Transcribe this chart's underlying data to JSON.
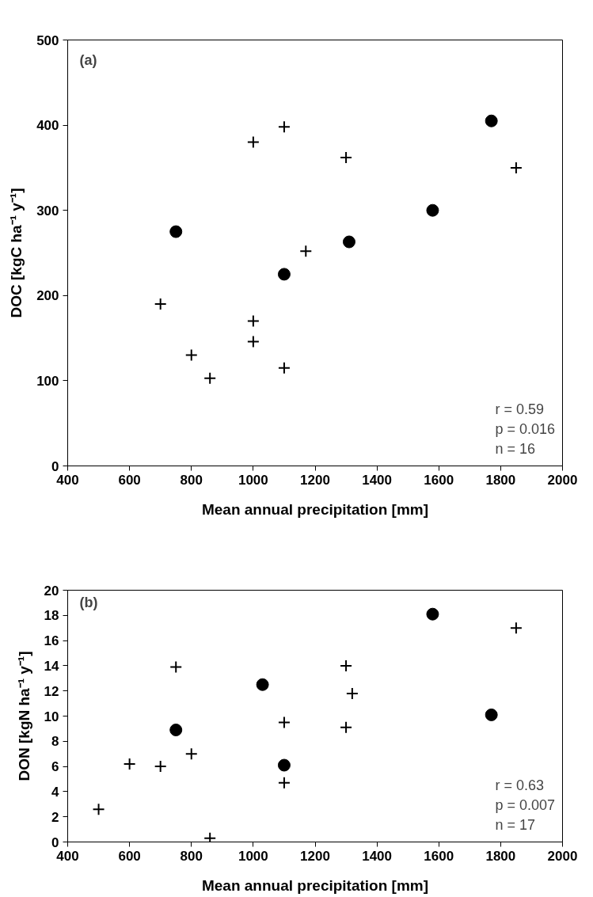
{
  "chart_data": [
    {
      "type": "scatter",
      "title": "(a)",
      "xlabel": "Mean annual precipitation [mm]",
      "ylabel": "DOC [kgC ha⁻¹ y⁻¹]",
      "annotations": [
        "r = 0.59",
        "p = 0.016",
        "n = 16"
      ],
      "xlim": [
        400,
        2000
      ],
      "xticks": [
        400,
        600,
        800,
        1000,
        1200,
        1400,
        1600,
        1800,
        2000
      ],
      "ylim": [
        0,
        500
      ],
      "yticks": [
        0,
        100,
        200,
        300,
        400,
        500
      ],
      "grid": false,
      "series": [
        {
          "color": "#000000",
          "marker": "circle",
          "x": [
            750,
            1100,
            1310,
            1580,
            1770
          ],
          "values": [
            275,
            225,
            263,
            300,
            405
          ]
        },
        {
          "color": "#000000",
          "marker": "cross",
          "x": [
            700,
            800,
            860,
            1000,
            1000,
            1000,
            1100,
            1100,
            1170,
            1300,
            1850
          ],
          "values": [
            190,
            130,
            103,
            380,
            170,
            146,
            398,
            115,
            252,
            362,
            350
          ]
        }
      ]
    },
    {
      "type": "scatter",
      "title": "(b)",
      "xlabel": "Mean annual precipitation [mm]",
      "ylabel": "DON [kgN ha⁻¹ y⁻¹]",
      "annotations": [
        "r = 0.63",
        "p = 0.007",
        "n = 17"
      ],
      "xlim": [
        400,
        2000
      ],
      "xticks": [
        400,
        600,
        800,
        1000,
        1200,
        1400,
        1600,
        1800,
        2000
      ],
      "ylim": [
        0,
        20
      ],
      "yticks": [
        0,
        2,
        4,
        6,
        8,
        10,
        12,
        14,
        16,
        18,
        20
      ],
      "grid": false,
      "series": [
        {
          "color": "#000000",
          "marker": "circle",
          "x": [
            750,
            1030,
            1100,
            1580,
            1770
          ],
          "values": [
            8.9,
            12.5,
            6.1,
            18.1,
            10.1
          ]
        },
        {
          "color": "#000000",
          "marker": "cross",
          "x": [
            500,
            600,
            700,
            750,
            800,
            860,
            1100,
            1100,
            1300,
            1300,
            1320,
            1850
          ],
          "values": [
            2.6,
            6.2,
            6.0,
            13.9,
            7.0,
            0.3,
            9.5,
            4.7,
            14.0,
            9.1,
            11.8,
            17.0
          ]
        }
      ]
    }
  ]
}
